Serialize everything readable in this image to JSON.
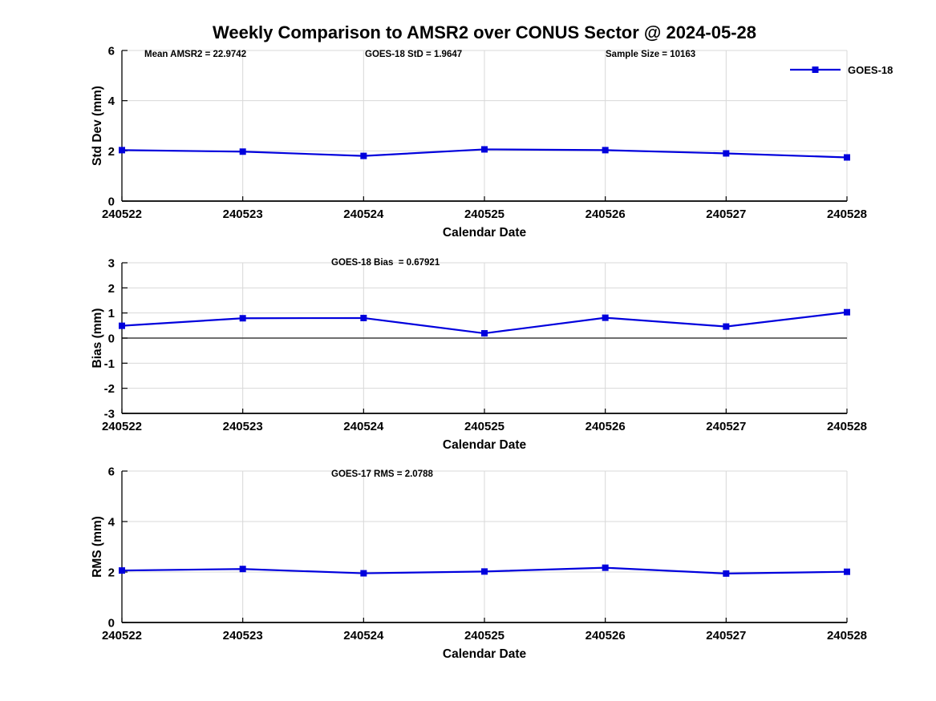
{
  "figure": {
    "title": "Weekly Comparison to AMSR2 over CONUS Sector @ 2024-05-28"
  },
  "legend": {
    "label": "GOES-18",
    "position": "outside-right-top"
  },
  "colors": {
    "series": "#0000dd",
    "grid": "#d8d8d8",
    "zero_line": "#3f3f3f",
    "axis": "#000000",
    "text": "#000000",
    "background": "#ffffff"
  },
  "chart_data": [
    {
      "type": "line",
      "panel": "std-dev",
      "annotations": [
        "Mean AMSR2 = 22.9742",
        "GOES-18 StD = 1.9647",
        "Sample Size = 10163"
      ],
      "xlabel": "Calendar Date",
      "ylabel": "Std Dev (mm)",
      "categories": [
        "240522",
        "240523",
        "240524",
        "240525",
        "240526",
        "240527",
        "240528"
      ],
      "series": [
        {
          "name": "GOES-18",
          "values": [
            2.03,
            1.97,
            1.8,
            2.06,
            2.03,
            1.9,
            1.74
          ]
        }
      ],
      "ylim": [
        0,
        6
      ],
      "yticks": [
        0,
        2,
        4,
        6
      ],
      "grid": true,
      "marker": "square",
      "show_legend": true
    },
    {
      "type": "line",
      "panel": "bias",
      "annotations": [
        "GOES-18 Bias  = 0.67921"
      ],
      "xlabel": "Calendar Date",
      "ylabel": "Bias (mm)",
      "categories": [
        "240522",
        "240523",
        "240524",
        "240525",
        "240526",
        "240527",
        "240528"
      ],
      "series": [
        {
          "name": "GOES-18",
          "values": [
            0.49,
            0.79,
            0.8,
            0.19,
            0.81,
            0.46,
            1.03
          ]
        }
      ],
      "ylim": [
        -3,
        3
      ],
      "yticks": [
        -3,
        -2,
        -1,
        0,
        1,
        2,
        3
      ],
      "zero_line": true,
      "grid": true,
      "marker": "square",
      "show_legend": false
    },
    {
      "type": "line",
      "panel": "rms",
      "annotations": [
        "GOES-17 RMS = 2.0788"
      ],
      "xlabel": "Calendar Date",
      "ylabel": "RMS (mm)",
      "categories": [
        "240522",
        "240523",
        "240524",
        "240525",
        "240526",
        "240527",
        "240528"
      ],
      "series": [
        {
          "name": "GOES-18",
          "values": [
            2.06,
            2.12,
            1.95,
            2.02,
            2.17,
            1.94,
            2.01
          ]
        }
      ],
      "ylim": [
        0,
        6
      ],
      "yticks": [
        0,
        2,
        4,
        6
      ],
      "grid": true,
      "marker": "square",
      "show_legend": false
    }
  ]
}
